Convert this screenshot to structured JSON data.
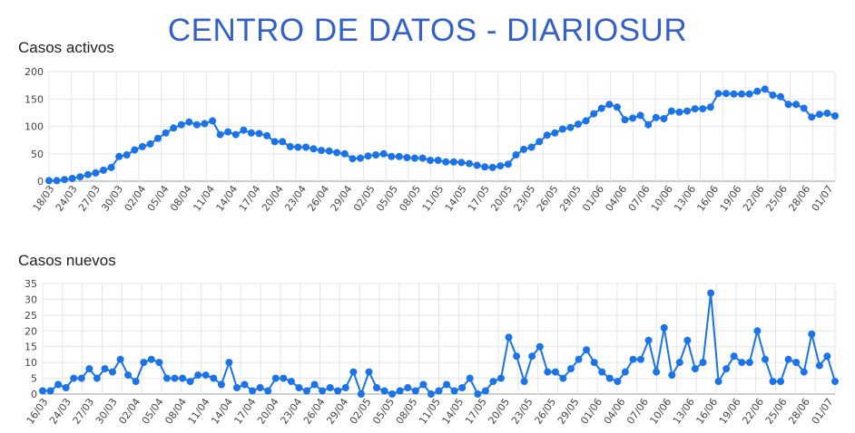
{
  "page": {
    "title": "CENTRO DE DATOS - DIARIOSUR"
  },
  "colors": {
    "series": "#1a73e8",
    "grid": "#e4e4e4",
    "title": "#3461c9"
  },
  "chart_data": [
    {
      "type": "line",
      "title": "Casos activos",
      "ylim": [
        0,
        200
      ],
      "yticks": [
        0,
        50,
        100,
        150,
        200
      ],
      "grid": true,
      "x_labels": [
        "18/03",
        "24/03",
        "27/03",
        "30/03",
        "02/04",
        "05/04",
        "08/04",
        "11/04",
        "14/04",
        "17/04",
        "20/04",
        "23/04",
        "26/04",
        "29/04",
        "02/05",
        "05/05",
        "08/05",
        "11/05",
        "14/05",
        "17/05",
        "20/05",
        "23/05",
        "26/05",
        "29/05",
        "01/06",
        "04/06",
        "07/06",
        "10/06",
        "13/06",
        "16/06",
        "19/06",
        "22/06",
        "25/06",
        "28/06",
        "01/07"
      ],
      "values": [
        1,
        1,
        3,
        5,
        8,
        12,
        15,
        20,
        25,
        45,
        48,
        57,
        63,
        68,
        78,
        88,
        97,
        103,
        108,
        103,
        105,
        110,
        85,
        90,
        85,
        93,
        88,
        87,
        83,
        72,
        72,
        63,
        62,
        62,
        59,
        56,
        55,
        52,
        50,
        41,
        42,
        46,
        48,
        50,
        45,
        45,
        43,
        42,
        42,
        38,
        38,
        35,
        35,
        34,
        32,
        29,
        26,
        25,
        28,
        31,
        48,
        58,
        62,
        72,
        84,
        88,
        95,
        98,
        104,
        110,
        123,
        133,
        140,
        135,
        112,
        115,
        120,
        103,
        116,
        114,
        128,
        126,
        128,
        132,
        132,
        135,
        160,
        160,
        159,
        159,
        159,
        164,
        168,
        157,
        154,
        140,
        140,
        133,
        117,
        122,
        124,
        119
      ]
    },
    {
      "type": "line",
      "title": "Casos nuevos",
      "ylim": [
        0,
        35
      ],
      "yticks": [
        0,
        5,
        10,
        15,
        20,
        25,
        30,
        35
      ],
      "grid": true,
      "x_labels": [
        "16/03",
        "24/03",
        "27/03",
        "30/03",
        "02/04",
        "05/04",
        "08/04",
        "11/04",
        "14/04",
        "17/04",
        "20/04",
        "23/04",
        "26/04",
        "29/04",
        "02/05",
        "05/05",
        "08/05",
        "11/05",
        "14/05",
        "17/05",
        "20/05",
        "23/05",
        "26/05",
        "29/05",
        "01/06",
        "04/06",
        "07/06",
        "10/06",
        "13/06",
        "16/06",
        "19/06",
        "22/06",
        "25/06",
        "28/06",
        "01/07"
      ],
      "values": [
        1,
        1,
        3,
        2,
        5,
        5,
        8,
        5,
        8,
        7,
        11,
        6,
        4,
        10,
        11,
        10,
        5,
        5,
        5,
        4,
        6,
        6,
        5,
        3,
        10,
        2,
        3,
        1,
        2,
        1,
        5,
        5,
        4,
        2,
        1,
        3,
        1,
        2,
        1,
        2,
        7,
        0,
        7,
        2,
        1,
        0,
        1,
        2,
        1,
        3,
        0,
        1,
        3,
        1,
        2,
        5,
        0,
        1,
        4,
        5,
        18,
        12,
        4,
        12,
        15,
        7,
        7,
        5,
        8,
        11,
        14,
        10,
        7,
        5,
        4,
        7,
        11,
        11,
        17,
        7,
        21,
        6,
        10,
        17,
        8,
        10,
        32,
        4,
        8,
        12,
        10,
        10,
        20,
        11,
        4,
        4,
        11,
        10,
        7,
        19,
        9,
        12,
        4
      ]
    }
  ]
}
